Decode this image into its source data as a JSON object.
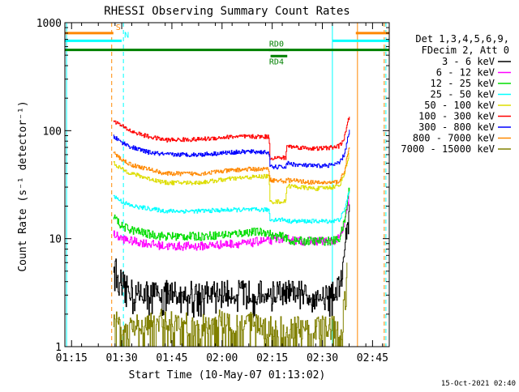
{
  "chart_data": {
    "type": "line",
    "title": "RHESSI Observing Summary Count Rates",
    "xlabel": "Start Time (10-May-07 01:13:02)",
    "ylabel": "Count Rate (s⁻¹ detector⁻¹)",
    "x_unit": "minutes after 01:13:02",
    "xlim": [
      0,
      97
    ],
    "ylim": [
      1,
      1000
    ],
    "y_scale": "log",
    "grid": false,
    "x_ticks": [
      {
        "t": 2,
        "label": "01:15"
      },
      {
        "t": 17,
        "label": "01:30"
      },
      {
        "t": 32,
        "label": "01:45"
      },
      {
        "t": 47,
        "label": "02:00"
      },
      {
        "t": 62,
        "label": "02:15"
      },
      {
        "t": 77,
        "label": "02:30"
      },
      {
        "t": 92,
        "label": "02:45"
      }
    ],
    "y_ticks": [
      {
        "v": 1,
        "label": "1"
      },
      {
        "v": 10,
        "label": "10"
      },
      {
        "v": 100,
        "label": "100"
      },
      {
        "v": 1000,
        "label": "1000"
      }
    ],
    "legend": {
      "placement": "right",
      "header": [
        "Det 1,3,4,5,6,9,",
        "FDecim 2, Att 0"
      ]
    },
    "series": [
      {
        "name": "3 - 6 keV",
        "color": "#000000",
        "x": [
          14.5,
          15.5,
          16.5,
          17.5,
          18.5,
          20,
          25,
          30,
          40,
          50,
          60,
          65,
          70,
          75,
          80,
          81.5,
          82.5,
          83.5,
          84.5,
          85.2
        ],
        "y": [
          6,
          5,
          4.2,
          3.8,
          3.5,
          3.3,
          3.2,
          3.2,
          3.2,
          3.2,
          3.2,
          3.2,
          3.2,
          3.2,
          3.2,
          3.5,
          4.5,
          8,
          14,
          20
        ]
      },
      {
        "name": "6 - 12 keV",
        "color": "#ff00ff",
        "x": [
          14.5,
          17,
          20,
          25,
          30,
          40,
          50,
          55,
          58,
          61.5,
          62,
          66,
          70,
          75,
          80,
          82,
          83.5,
          85
        ],
        "y": [
          11,
          10,
          9.5,
          9,
          8.5,
          8.5,
          9,
          9,
          9.5,
          9.5,
          10,
          10,
          9.5,
          9.5,
          9.5,
          10,
          13,
          25
        ]
      },
      {
        "name": "12 - 25 keV",
        "color": "#00dd00",
        "x": [
          14.5,
          17,
          20,
          25,
          30,
          40,
          50,
          55,
          60,
          61.5,
          62,
          66,
          66.5,
          70,
          75,
          80,
          82,
          83.5,
          85.2
        ],
        "y": [
          16,
          13,
          12,
          11,
          10.5,
          10.5,
          11,
          11.5,
          11.5,
          11,
          10.5,
          10.5,
          9.5,
          9.5,
          9.5,
          9.5,
          10,
          14,
          32
        ]
      },
      {
        "name": "25 - 50 keV",
        "color": "#00ffff",
        "x": [
          14.5,
          17,
          20,
          25,
          30,
          40,
          50,
          55,
          61,
          61.3,
          66,
          66.3,
          70,
          75,
          80,
          82,
          83.5,
          85.2
        ],
        "y": [
          25,
          22,
          20,
          19,
          18,
          18,
          18.5,
          18.5,
          18.5,
          15,
          15,
          14.5,
          14.5,
          14.5,
          14.5,
          15,
          18,
          30
        ]
      },
      {
        "name": "50 - 100 keV",
        "color": "#dddd00",
        "x": [
          14.5,
          17,
          20,
          25,
          30,
          40,
          50,
          55,
          61,
          61.3,
          66,
          66.3,
          70,
          75,
          80,
          82,
          83.5,
          85.2
        ],
        "y": [
          50,
          44,
          40,
          36,
          33,
          33,
          36,
          37,
          38,
          22,
          22,
          31,
          30,
          29,
          30,
          31,
          40,
          65
        ]
      },
      {
        "name": "100 - 300 keV",
        "color": "#ff0000",
        "x": [
          14.5,
          17,
          20,
          25,
          30,
          40,
          50,
          55,
          61,
          61.3,
          66,
          66.3,
          70,
          75,
          80,
          82,
          83.5,
          85.2
        ],
        "y": [
          125,
          110,
          98,
          88,
          82,
          83,
          88,
          88,
          88,
          56,
          56,
          72,
          70,
          68,
          70,
          72,
          85,
          145
        ]
      },
      {
        "name": "300 - 800 keV",
        "color": "#0000ff",
        "x": [
          14.5,
          17,
          20,
          25,
          30,
          40,
          50,
          55,
          61,
          61.3,
          66,
          66.3,
          70,
          75,
          80,
          82,
          83.5,
          85.2
        ],
        "y": [
          88,
          78,
          70,
          63,
          60,
          60,
          63,
          64,
          63,
          46,
          46,
          50,
          48,
          47,
          48,
          50,
          60,
          105
        ]
      },
      {
        "name": "800 - 7000 keV",
        "color": "#ff8800",
        "x": [
          14.5,
          17,
          20,
          25,
          30,
          40,
          50,
          55,
          61,
          61.3,
          66,
          66.3,
          70,
          75,
          80,
          82,
          83.5,
          85.2
        ],
        "y": [
          62,
          54,
          48,
          44,
          40,
          40,
          43,
          44,
          44,
          35,
          34,
          35,
          34,
          33,
          33,
          34,
          42,
          75
        ]
      },
      {
        "name": "7000 - 15000 keV",
        "color": "#808000",
        "x": [
          14.5,
          16,
          18,
          20,
          25,
          30,
          40,
          45,
          50,
          55,
          60,
          65,
          70,
          75,
          80,
          83,
          83.5,
          84.5
        ],
        "y": [
          1.5,
          1.8,
          1.5,
          1.5,
          1.6,
          1.8,
          1.5,
          1.7,
          1.7,
          1.7,
          1.5,
          1.5,
          1.5,
          1.5,
          1.5,
          1.5,
          3,
          7
        ]
      }
    ],
    "flags": [
      {
        "label": "S",
        "color": "#ff8800",
        "t1": 0,
        "t2": 14.5,
        "level": 800
      },
      {
        "label": "N",
        "color": "#00ffff",
        "t1": 0,
        "t2": 17,
        "level": 680
      },
      {
        "label": "",
        "color": "#008000",
        "t1": 0,
        "t2": 97,
        "level": 560
      },
      {
        "label": "RD0",
        "color": "#008000",
        "t1": 61,
        "t2": 67,
        "level": 560
      },
      {
        "label": "RD4",
        "color": "#008000",
        "t1": 61.5,
        "t2": 66.5,
        "level": 490
      },
      {
        "label": "",
        "color": "#ff8800",
        "t1": 87,
        "t2": 97,
        "level": 800
      },
      {
        "label": "",
        "color": "#00ffff",
        "t1": 80,
        "t2": 97,
        "level": 680
      }
    ],
    "markers": [
      {
        "t": 14,
        "color": "#ff8800",
        "style": "dashed"
      },
      {
        "t": 17.5,
        "color": "#00ffff",
        "style": "dashed"
      },
      {
        "t": 0.5,
        "color": "#00ffff",
        "style": "solid"
      },
      {
        "t": 80,
        "color": "#00ffff",
        "style": "solid"
      },
      {
        "t": 87.5,
        "color": "#ff8800",
        "style": "solid"
      },
      {
        "t": 95.5,
        "color": "#ff8800",
        "style": "dashed"
      },
      {
        "t": 96,
        "color": "#00ffff",
        "style": "dashed"
      }
    ]
  },
  "footer": {
    "timestamp": "15-Oct-2021 02:40"
  }
}
